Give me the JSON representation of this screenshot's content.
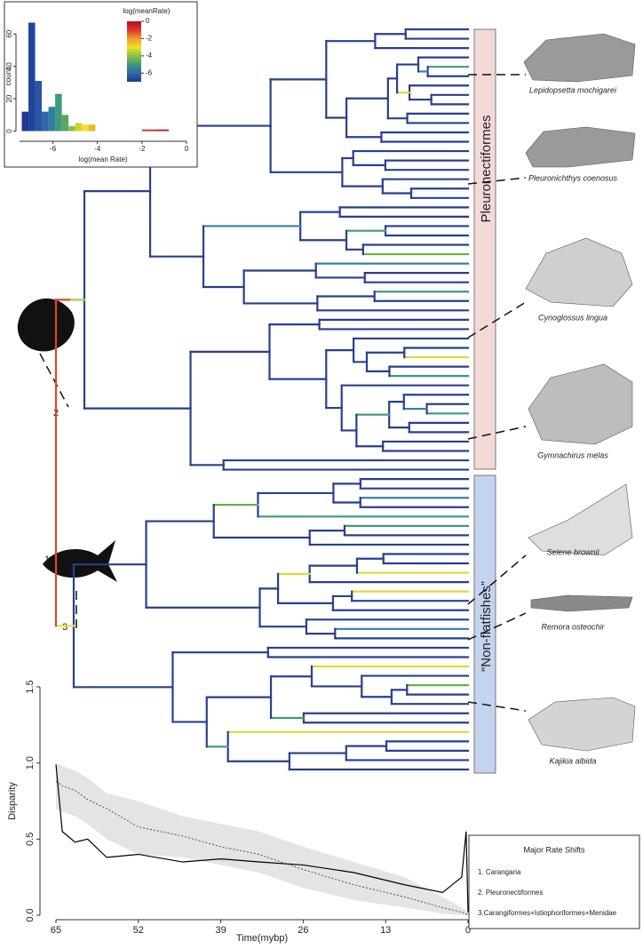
{
  "chart_data": [
    {
      "type": "histogram",
      "bins": [
        -7.4,
        -7.1,
        -6.8,
        -6.5,
        -6.2,
        -5.9,
        -5.6,
        -5.3,
        -5.0,
        -4.7,
        -4.4,
        -4.1,
        -3.8,
        -3.5,
        -3.2,
        -2.9,
        -2.6,
        -2.3,
        -2.0,
        -1.7,
        -1.4,
        -1.1,
        -0.8,
        -0.5,
        -0.2
      ],
      "values": [
        12,
        67,
        31,
        12,
        15,
        23,
        10,
        3,
        5,
        4,
        4,
        0,
        0,
        0,
        0,
        0,
        0,
        0,
        1,
        1,
        1,
        1,
        0,
        0
      ],
      "colors": [
        "#1f3a8f",
        "#22449b",
        "#2a55a6",
        "#2f68a8",
        "#347fa0",
        "#3e9a7c",
        "#5aa85a",
        "#8cbf3e",
        "#c8d62f",
        "#f0e027",
        "#f5b52a",
        "#f29a2b",
        "#ee7b2c",
        "#ee7b2c",
        "#ea6a2c",
        "#e6592c",
        "#e24a2b",
        "#e0362a",
        "#d9262a",
        "#d01e28",
        "#c81a26",
        "#c01424",
        "#b81022",
        "#b00c20"
      ],
      "xlim": [
        -7.5,
        0
      ],
      "xticks": [
        -6,
        -4,
        -2,
        0
      ],
      "ylim": [
        -3,
        70
      ],
      "yticks": [
        0,
        20,
        40,
        60
      ],
      "x_label": "log(mean Rate)",
      "y_label": "count",
      "colorbar": {
        "title": "log(meanRate)",
        "colors": [
          "#b00c20",
          "#e0362a",
          "#f29a2b",
          "#f0e027",
          "#8cbf3e",
          "#3e9a7c",
          "#2f68a8",
          "#1f3a8f"
        ],
        "lim": [
          0,
          -7
        ],
        "ticks": [
          0,
          -2,
          -4,
          -6
        ]
      }
    },
    {
      "type": "line",
      "x": [
        65,
        64,
        62,
        60,
        57,
        52,
        45,
        39,
        33,
        26,
        18,
        10,
        4,
        1,
        0.3,
        0
      ],
      "series": [
        {
          "color": "#000000",
          "dash": false,
          "values": [
            0.99,
            0.55,
            0.48,
            0.5,
            0.38,
            0.4,
            0.35,
            0.37,
            0.35,
            0.33,
            0.28,
            0.2,
            0.15,
            0.25,
            0.55,
            0.02
          ]
        },
        {
          "color": "#444444",
          "dash": true,
          "values": [
            0.88,
            0.85,
            0.82,
            0.76,
            0.7,
            0.58,
            0.52,
            0.45,
            0.4,
            0.3,
            0.2,
            0.12,
            0.05,
            0.02,
            0.01,
            0
          ]
        }
      ],
      "band": {
        "color": "#e4e4e4",
        "upper": [
          1.0,
          0.98,
          0.95,
          0.9,
          0.8,
          0.75,
          0.65,
          0.6,
          0.55,
          0.45,
          0.35,
          0.25,
          0.12,
          0.05,
          0.03,
          0.02
        ],
        "lower": [
          0.7,
          0.68,
          0.65,
          0.6,
          0.5,
          0.4,
          0.38,
          0.33,
          0.28,
          0.18,
          0.1,
          0.05,
          0.01,
          0,
          0,
          0
        ]
      },
      "xlim": [
        65,
        0
      ],
      "xticks": [
        65,
        52,
        39,
        26,
        13,
        0
      ],
      "ylim": [
        0,
        1.5
      ],
      "yticks": [
        {
          "value": 0,
          "label": "0.0"
        },
        0.5,
        {
          "value": 1,
          "label": "1.0"
        },
        1.5
      ],
      "x_label": "Time(mybp)",
      "y_label": "Disparity"
    }
  ],
  "tree": {
    "clades": [
      "Pleuronectiformes",
      "“Non-flatfishes”"
    ],
    "node_labels": [
      "1",
      "2",
      "3"
    ],
    "species": [
      "Lepidopsetta mochigarei",
      "Pleuronichthys coenosus",
      "Cynoglossus lingua",
      "Gymnachirus melas",
      "Selene brownii",
      "Remora osteochir",
      "Kajikia albida"
    ]
  },
  "legend": {
    "title": "Major Rate Shifts",
    "items": [
      "1. Carangaria",
      "2. Pleuronectiformes",
      "3.Carangiformes+Istiophoriformes+Menidae"
    ]
  }
}
